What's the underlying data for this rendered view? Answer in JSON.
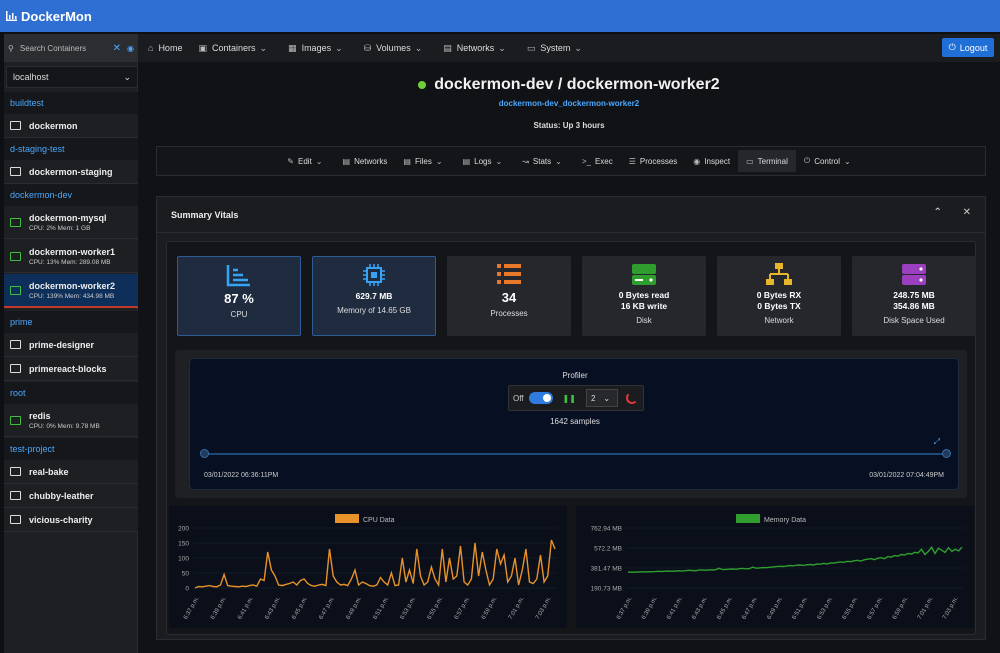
{
  "app": {
    "title": "DockerMon"
  },
  "sidebar": {
    "search_placeholder": "Search Containers",
    "host": "localhost",
    "groups": [
      {
        "label": "buildtest",
        "items": [
          {
            "name": "dockermon",
            "stats": ""
          }
        ]
      },
      {
        "label": "d-staging-test",
        "items": [
          {
            "name": "dockermon-staging",
            "stats": ""
          }
        ]
      },
      {
        "label": "dockermon-dev",
        "items": [
          {
            "name": "dockermon-mysql",
            "stats": "CPU: 2% Mem: 1 GB"
          },
          {
            "name": "dockermon-worker1",
            "stats": "CPU: 13% Mem: 289.08 MB"
          },
          {
            "name": "dockermon-worker2",
            "stats": "CPU: 139% Mem: 434.98 MB"
          }
        ]
      },
      {
        "label": "prime",
        "items": [
          {
            "name": "prime-designer",
            "stats": ""
          },
          {
            "name": "primereact-blocks",
            "stats": ""
          }
        ]
      },
      {
        "label": "root",
        "items": [
          {
            "name": "redis",
            "stats": "CPU: 0% Mem: 9.78 MB"
          }
        ]
      },
      {
        "label": "test-project",
        "items": [
          {
            "name": "real-bake",
            "stats": ""
          },
          {
            "name": "chubby-leather",
            "stats": ""
          },
          {
            "name": "vicious-charity",
            "stats": ""
          }
        ]
      }
    ]
  },
  "nav": {
    "home": "Home",
    "containers": "Containers",
    "images": "Images",
    "volumes": "Volumes",
    "networks": "Networks",
    "system": "System",
    "logout": "Logout"
  },
  "container": {
    "title": "dockermon-dev / dockermon-worker2",
    "full_name": "dockermon-dev_dockermon-worker2",
    "status": "Status: Up 3 hours",
    "status_color": "#6ed03a"
  },
  "toolbar": {
    "edit": "Edit",
    "networks": "Networks",
    "files": "Files",
    "logs": "Logs",
    "stats": "Stats",
    "exec": "Exec",
    "processes": "Processes",
    "inspect": "Inspect",
    "terminal": "Terminal",
    "control": "Control"
  },
  "summary": {
    "title": "Summary Vitals",
    "cpu": {
      "value": "87 %",
      "label": "CPU"
    },
    "memory": {
      "value": "629.7 MB",
      "label": "Memory of 14.65 GB"
    },
    "processes": {
      "value": "34",
      "label": "Processes"
    },
    "disk": {
      "read": "0 Bytes read",
      "write": "16 KB write",
      "label": "Disk"
    },
    "network": {
      "rx": "0 Bytes RX",
      "tx": "0 Bytes TX",
      "label": "Network"
    },
    "disk_space": {
      "a": "248.75 MB",
      "b": "354.86 MB",
      "label": "Disk Space Used"
    }
  },
  "profiler": {
    "title": "Profiler",
    "off_label": "Off",
    "interval": "2",
    "samples": "1642 samples",
    "start": "03/01/2022 06:36:11PM",
    "end": "03/01/2022 07:04:49PM"
  },
  "chart_data": [
    {
      "type": "line",
      "series": [
        {
          "name": "CPU Data",
          "color": "#e8922a",
          "values": [
            0,
            5,
            4,
            6,
            8,
            5,
            4,
            10,
            45,
            8,
            6,
            5,
            4,
            6,
            5,
            8,
            10,
            6,
            30,
            25,
            120,
            60,
            40,
            10,
            8,
            12,
            15,
            20,
            10,
            25,
            30,
            15,
            8,
            6,
            10,
            12,
            8,
            130,
            40,
            20,
            10,
            12,
            8,
            30,
            60,
            10,
            20,
            15,
            8,
            6,
            10,
            35,
            20,
            10,
            50,
            8,
            10,
            100,
            20,
            60,
            15,
            130,
            40,
            10,
            20,
            70,
            30,
            10,
            130,
            20,
            100,
            30,
            40,
            140,
            20,
            10,
            30,
            150,
            40,
            120,
            60,
            10,
            30,
            130,
            80,
            110,
            20,
            40,
            100,
            10,
            60,
            130,
            20,
            15,
            30,
            110,
            20,
            40,
            160,
            130
          ]
        }
      ],
      "x_ticks": [
        "6:37 p.m.",
        "6:39 p.m.",
        "6:41 p.m.",
        "6:43 p.m.",
        "6:45 p.m.",
        "6:47 p.m.",
        "6:49 p.m.",
        "6:51 p.m.",
        "6:53 p.m.",
        "6:55 p.m.",
        "6:57 p.m.",
        "6:59 p.m.",
        "7:01 p.m.",
        "7:03 p.m."
      ],
      "y_ticks": [
        "200",
        "150",
        "100",
        "50",
        "0"
      ],
      "ylim": [
        0,
        200
      ]
    },
    {
      "type": "line",
      "series": [
        {
          "name": "Memory Data",
          "color": "#2f9e2f",
          "values": [
            340,
            342,
            341,
            343,
            345,
            344,
            346,
            345,
            347,
            350,
            348,
            351,
            352,
            350,
            353,
            355,
            352,
            356,
            360,
            358,
            355,
            361,
            363,
            360,
            364,
            362,
            365,
            380,
            366,
            368,
            370,
            372,
            369,
            375,
            378,
            374,
            376,
            390,
            380,
            382,
            385,
            384,
            388,
            392,
            395,
            398,
            396,
            400,
            405,
            402,
            408,
            410,
            406,
            412,
            415,
            410,
            420,
            418,
            425,
            420,
            430,
            428,
            435,
            440,
            436,
            445,
            442,
            450,
            455,
            448,
            460,
            465,
            470,
            462,
            475,
            480,
            470,
            490,
            485,
            500,
            495,
            510,
            505,
            520,
            515,
            530,
            525,
            560,
            510,
            540,
            580,
            520,
            570,
            550,
            530,
            575,
            540,
            560,
            545,
            580
          ]
        }
      ],
      "x_ticks": [
        "6:37 p.m.",
        "6:39 p.m.",
        "6:41 p.m.",
        "6:43 p.m.",
        "6:45 p.m.",
        "6:47 p.m.",
        "6:49 p.m.",
        "6:51 p.m.",
        "6:53 p.m.",
        "6:55 p.m.",
        "6:57 p.m.",
        "6:59 p.m.",
        "7:01 p.m.",
        "7:03 p.m."
      ],
      "y_ticks": [
        "762.94 MB",
        "572.2 MB",
        "381.47 MB",
        "190.73 MB"
      ],
      "ylim": [
        190.73,
        762.94
      ]
    }
  ]
}
